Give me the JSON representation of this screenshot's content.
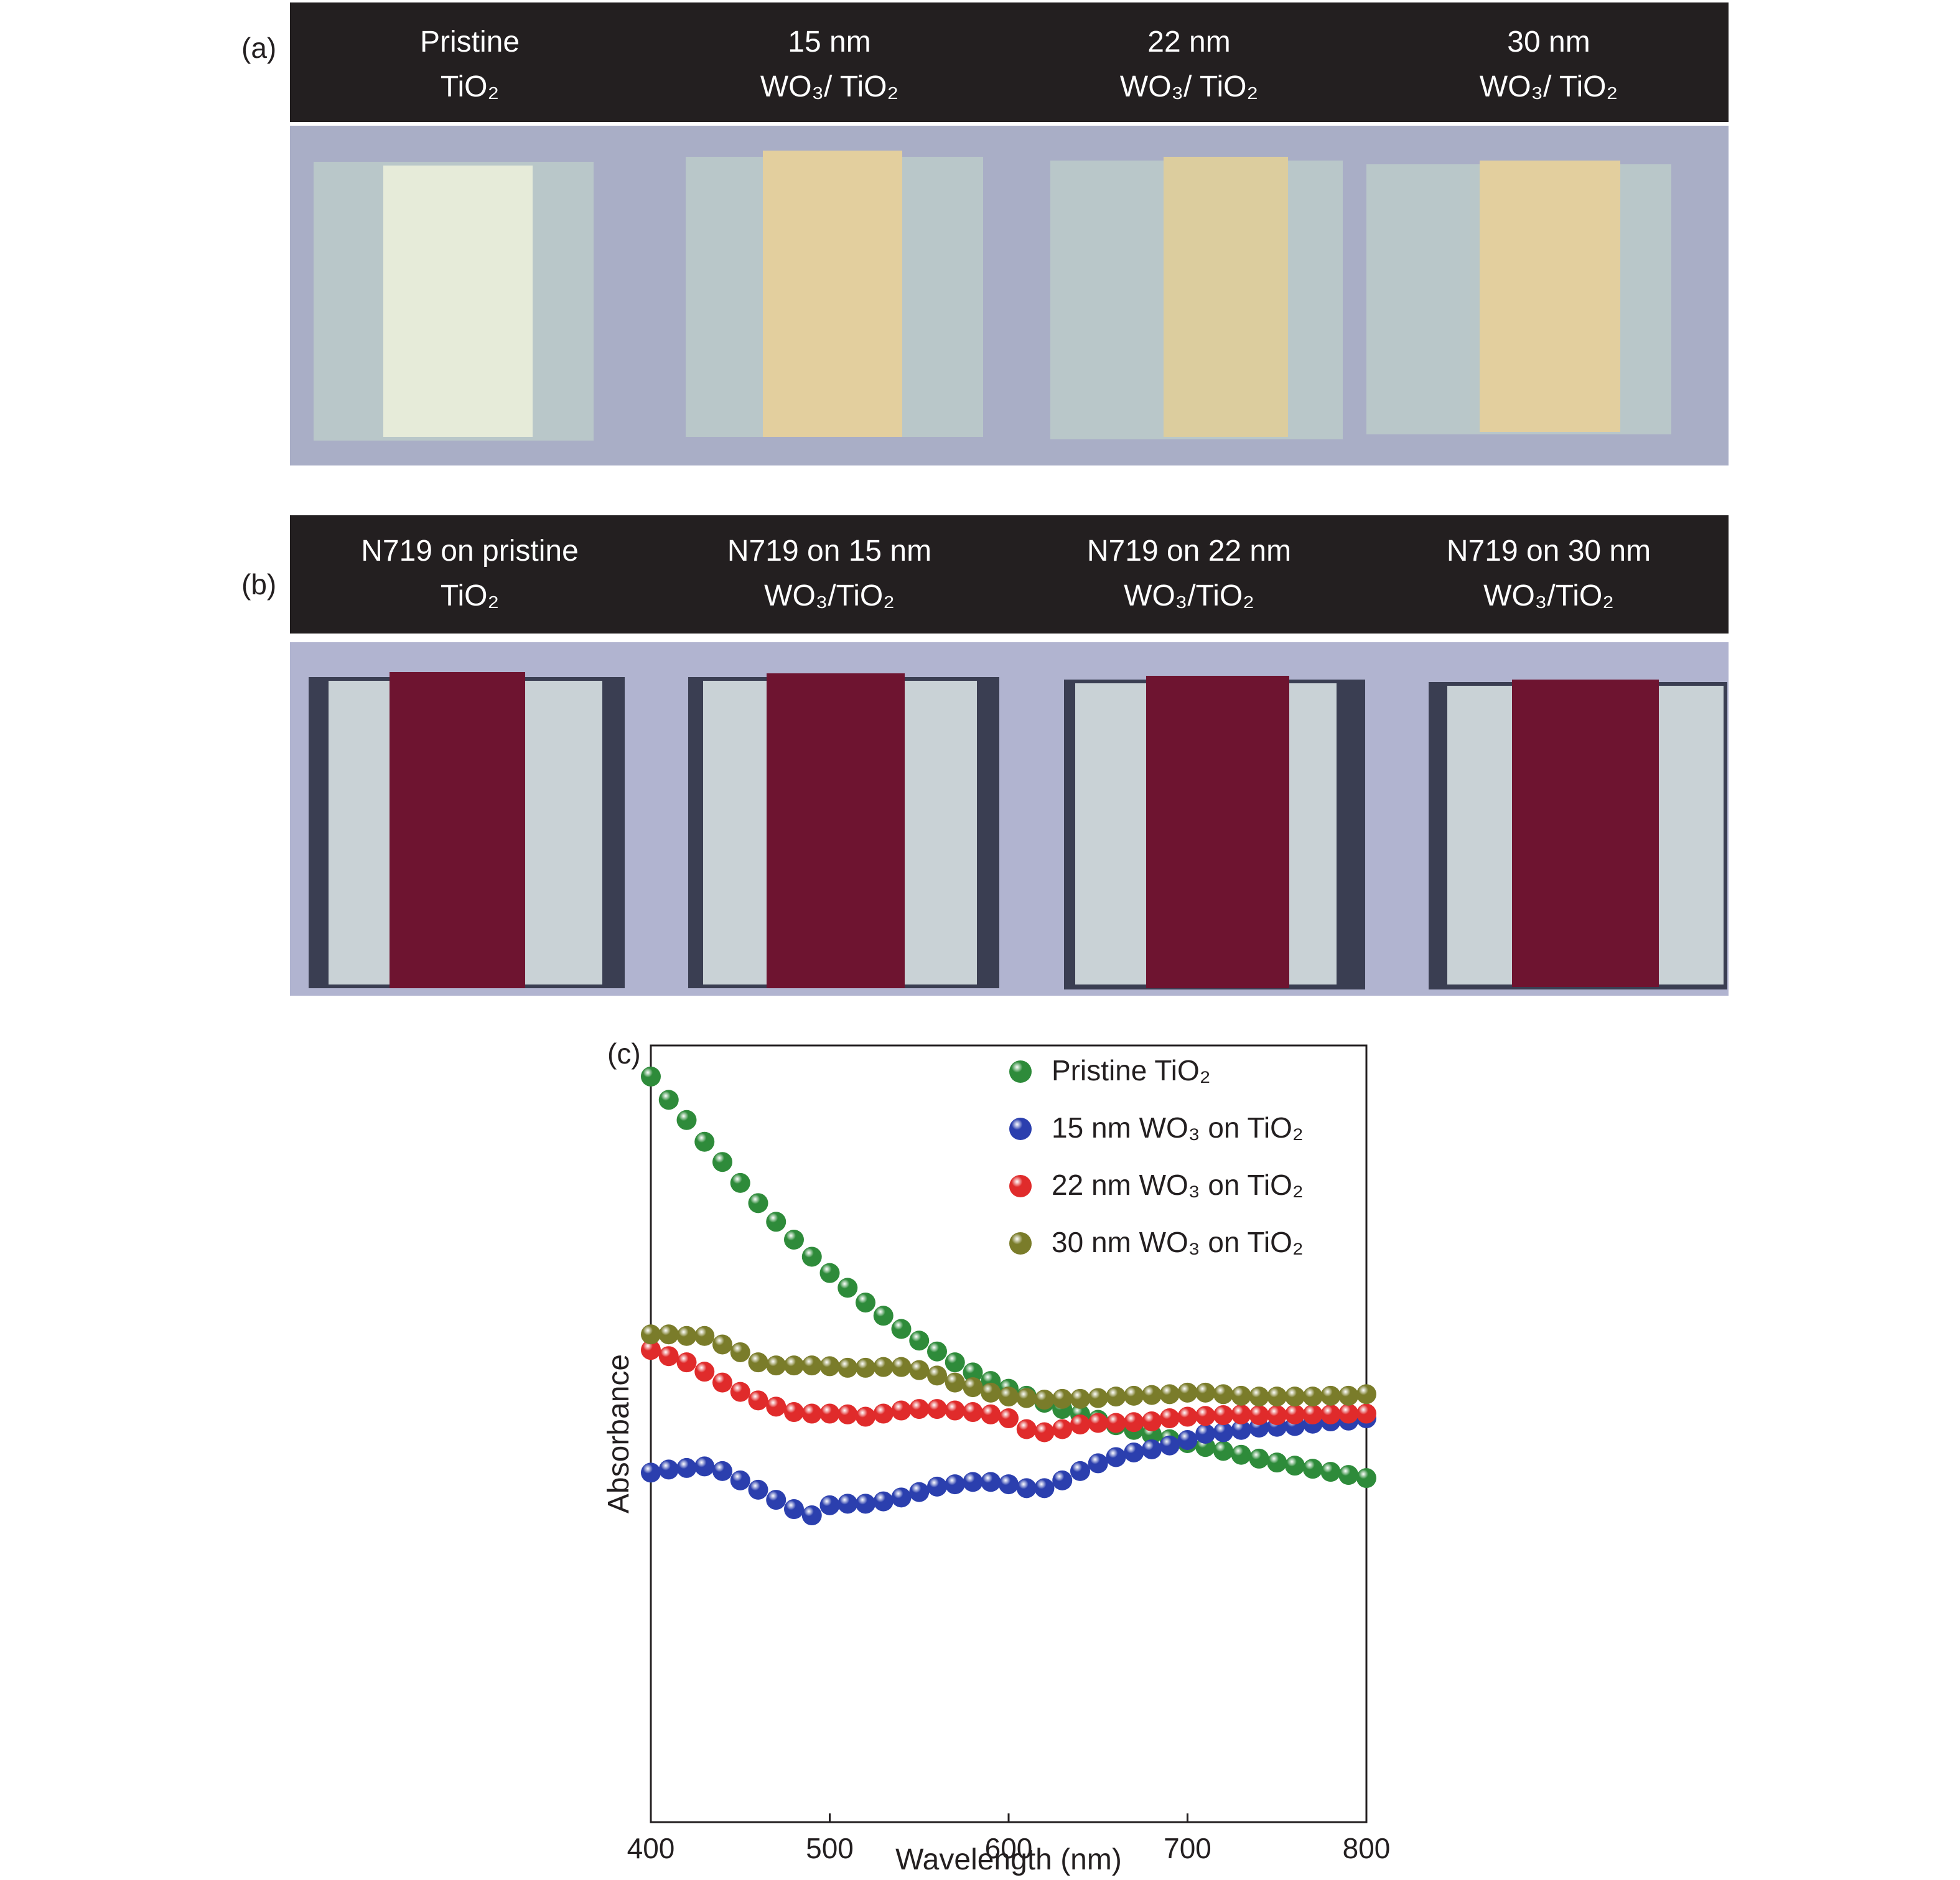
{
  "panels": {
    "a": {
      "letter": "(a)",
      "labels": [
        {
          "l1": "Pristine",
          "l2": "TiO₂"
        },
        {
          "l1": "15 nm",
          "l2": "WO₃/ TiO₂"
        },
        {
          "l1": "22 nm",
          "l2": "WO₃/ TiO₂"
        },
        {
          "l1": "30 nm",
          "l2": "WO₃/ TiO₂"
        }
      ]
    },
    "b": {
      "letter": "(b)",
      "labels": [
        {
          "l1": "N719 on pristine",
          "l2": "TiO₂"
        },
        {
          "l1": "N719 on 15 nm",
          "l2": "WO₃/TiO₂"
        },
        {
          "l1": "N719 on 22 nm",
          "l2": "WO₃/TiO₂"
        },
        {
          "l1": "N719 on 30 nm",
          "l2": "WO₃/TiO₂"
        }
      ]
    },
    "c": {
      "letter": "(c)"
    }
  },
  "colors": {
    "header_bg": "#231f20",
    "photo_bg_a": "#a9aec6",
    "photo_bg_b": "#b1b4d0",
    "glass": "#b9c7c9",
    "tio2_film": "#e6ebd9",
    "wo3_film": "#e3cf9e",
    "n719_film": "#6e1430",
    "substrate_edge": "#3a3e52"
  },
  "chart_data": {
    "type": "scatter",
    "xlabel": "Wavelength (nm)",
    "ylabel": "Absorbance",
    "xlim": [
      400,
      800
    ],
    "xticks": [
      400,
      500,
      600,
      700,
      800
    ],
    "ylim": [
      0,
      1
    ],
    "legend_position": "top-right",
    "grid": false,
    "x": [
      400,
      410,
      420,
      430,
      440,
      450,
      460,
      470,
      480,
      490,
      500,
      510,
      520,
      530,
      540,
      550,
      560,
      570,
      580,
      590,
      600,
      610,
      620,
      630,
      640,
      650,
      660,
      670,
      680,
      690,
      700,
      710,
      720,
      730,
      740,
      750,
      760,
      770,
      780,
      790,
      800
    ],
    "series": [
      {
        "name": "Pristine TiO₂",
        "color": "#2e8b3a",
        "values": [
          0.96,
          0.93,
          0.904,
          0.876,
          0.85,
          0.823,
          0.797,
          0.773,
          0.75,
          0.728,
          0.707,
          0.688,
          0.669,
          0.652,
          0.635,
          0.62,
          0.606,
          0.592,
          0.579,
          0.568,
          0.558,
          0.549,
          0.54,
          0.532,
          0.525,
          0.518,
          0.511,
          0.505,
          0.499,
          0.493,
          0.488,
          0.483,
          0.478,
          0.473,
          0.468,
          0.463,
          0.459,
          0.455,
          0.451,
          0.447,
          0.443
        ]
      },
      {
        "name": "15 nm WO₃ on TiO₂",
        "color": "#2b3fae",
        "values": [
          0.45,
          0.454,
          0.456,
          0.458,
          0.452,
          0.44,
          0.428,
          0.415,
          0.403,
          0.395,
          0.408,
          0.41,
          0.41,
          0.413,
          0.418,
          0.425,
          0.432,
          0.435,
          0.438,
          0.438,
          0.435,
          0.43,
          0.43,
          0.44,
          0.452,
          0.462,
          0.47,
          0.476,
          0.48,
          0.485,
          0.492,
          0.5,
          0.502,
          0.505,
          0.508,
          0.509,
          0.51,
          0.513,
          0.516,
          0.517,
          0.52
        ]
      },
      {
        "name": "22 nm WO₃ on TiO₂",
        "color": "#e02b2b",
        "values": [
          0.608,
          0.6,
          0.592,
          0.58,
          0.566,
          0.554,
          0.543,
          0.535,
          0.528,
          0.526,
          0.526,
          0.525,
          0.522,
          0.526,
          0.53,
          0.532,
          0.532,
          0.53,
          0.528,
          0.525,
          0.52,
          0.506,
          0.502,
          0.506,
          0.512,
          0.514,
          0.514,
          0.515,
          0.516,
          0.52,
          0.522,
          0.523,
          0.524,
          0.525,
          0.524,
          0.524,
          0.525,
          0.525,
          0.525,
          0.526,
          0.526
        ]
      },
      {
        "name": "30 nm WO₃ on TiO₂",
        "color": "#7a7c2a",
        "values": [
          0.628,
          0.628,
          0.626,
          0.626,
          0.615,
          0.605,
          0.592,
          0.588,
          0.588,
          0.588,
          0.587,
          0.585,
          0.585,
          0.586,
          0.586,
          0.582,
          0.575,
          0.566,
          0.56,
          0.553,
          0.548,
          0.546,
          0.544,
          0.545,
          0.545,
          0.546,
          0.548,
          0.549,
          0.55,
          0.551,
          0.553,
          0.553,
          0.551,
          0.549,
          0.548,
          0.548,
          0.548,
          0.548,
          0.549,
          0.549,
          0.551
        ]
      }
    ]
  }
}
